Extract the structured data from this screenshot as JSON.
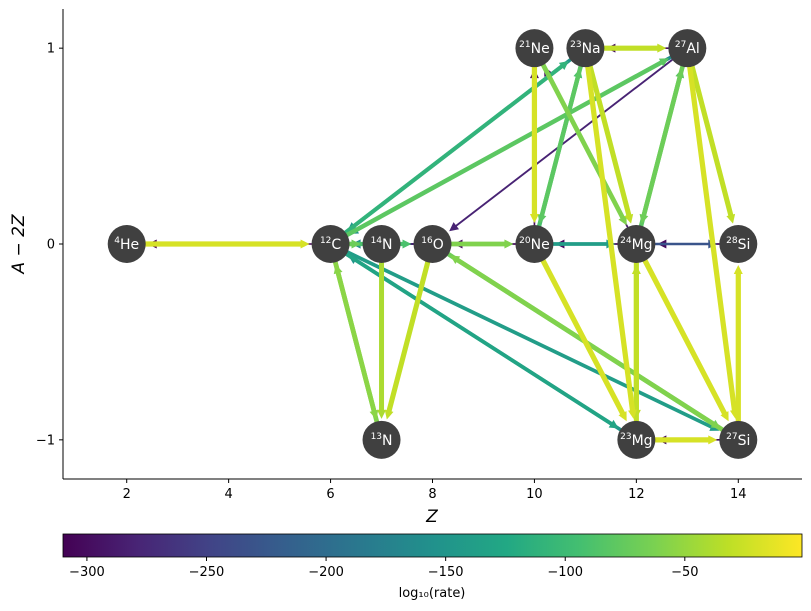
{
  "chart_data": {
    "type": "network",
    "xlabel": "Z",
    "ylabel": "A − 2Z",
    "xlim": [
      0.75,
      15.25
    ],
    "ylim": [
      -1.2,
      1.2
    ],
    "xticks": [
      2,
      4,
      6,
      8,
      10,
      12,
      14
    ],
    "yticks": [
      1,
      0,
      -1
    ],
    "ytick_labels": [
      "1",
      "0",
      "−1"
    ],
    "grid": false,
    "nodes": [
      {
        "id": "he4",
        "mass": "4",
        "symbol": "He",
        "z": 2,
        "a_minus_2z": 0
      },
      {
        "id": "c12",
        "mass": "12",
        "symbol": "C",
        "z": 6,
        "a_minus_2z": 0
      },
      {
        "id": "n13",
        "mass": "13",
        "symbol": "N",
        "z": 7,
        "a_minus_2z": -1
      },
      {
        "id": "n14",
        "mass": "14",
        "symbol": "N",
        "z": 7,
        "a_minus_2z": 0
      },
      {
        "id": "o16",
        "mass": "16",
        "symbol": "O",
        "z": 8,
        "a_minus_2z": 0
      },
      {
        "id": "ne20",
        "mass": "20",
        "symbol": "Ne",
        "z": 10,
        "a_minus_2z": 0
      },
      {
        "id": "ne21",
        "mass": "21",
        "symbol": "Ne",
        "z": 10,
        "a_minus_2z": 1
      },
      {
        "id": "na23",
        "mass": "23",
        "symbol": "Na",
        "z": 11,
        "a_minus_2z": 1
      },
      {
        "id": "mg23",
        "mass": "23",
        "symbol": "Mg",
        "z": 12,
        "a_minus_2z": -1
      },
      {
        "id": "mg24",
        "mass": "24",
        "symbol": "Mg",
        "z": 12,
        "a_minus_2z": 0
      },
      {
        "id": "al27",
        "mass": "27",
        "symbol": "Al",
        "z": 13,
        "a_minus_2z": 1
      },
      {
        "id": "si27",
        "mass": "27",
        "symbol": "Si",
        "z": 14,
        "a_minus_2z": -1
      },
      {
        "id": "si28",
        "mass": "28",
        "symbol": "Si",
        "z": 14,
        "a_minus_2z": 0
      }
    ],
    "edges": [
      {
        "from": "he4",
        "to": "c12",
        "log10_rate": -20
      },
      {
        "from": "c12",
        "to": "he4",
        "log10_rate": -310
      },
      {
        "from": "c12",
        "to": "n13",
        "log10_rate": -55
      },
      {
        "from": "n13",
        "to": "c12",
        "log10_rate": -60
      },
      {
        "from": "n14",
        "to": "n13",
        "log10_rate": -40
      },
      {
        "from": "o16",
        "to": "n13",
        "log10_rate": -30
      },
      {
        "from": "n14",
        "to": "c12",
        "log10_rate": -150
      },
      {
        "from": "c12",
        "to": "n14",
        "log10_rate": -70
      },
      {
        "from": "c12",
        "to": "o16",
        "log10_rate": -90
      },
      {
        "from": "o16",
        "to": "c12",
        "log10_rate": -280
      },
      {
        "from": "o16",
        "to": "ne20",
        "log10_rate": -60
      },
      {
        "from": "ne20",
        "to": "o16",
        "log10_rate": -300
      },
      {
        "from": "ne20",
        "to": "mg24",
        "log10_rate": -140
      },
      {
        "from": "mg24",
        "to": "ne20",
        "log10_rate": -300
      },
      {
        "from": "mg24",
        "to": "si28",
        "log10_rate": -230
      },
      {
        "from": "si28",
        "to": "mg24",
        "log10_rate": -300
      },
      {
        "from": "ne21",
        "to": "ne20",
        "log10_rate": -20
      },
      {
        "from": "ne20",
        "to": "ne21",
        "log10_rate": -300
      },
      {
        "from": "na23",
        "to": "ne20",
        "log10_rate": -80
      },
      {
        "from": "ne20",
        "to": "na23",
        "log10_rate": -90
      },
      {
        "from": "na23",
        "to": "al27",
        "log10_rate": -30
      },
      {
        "from": "al27",
        "to": "na23",
        "log10_rate": -300
      },
      {
        "from": "mg24",
        "to": "al27",
        "log10_rate": -80
      },
      {
        "from": "al27",
        "to": "mg24",
        "log10_rate": -70
      },
      {
        "from": "ne21",
        "to": "mg24",
        "log10_rate": -60
      },
      {
        "from": "mg24",
        "to": "ne21",
        "log10_rate": -290
      },
      {
        "from": "na23",
        "to": "mg24",
        "log10_rate": -30
      },
      {
        "from": "al27",
        "to": "si28",
        "log10_rate": -30
      },
      {
        "from": "c12",
        "to": "na23",
        "log10_rate": -110
      },
      {
        "from": "na23",
        "to": "c12",
        "log10_rate": -150
      },
      {
        "from": "al27",
        "to": "c12",
        "log10_rate": -160
      },
      {
        "from": "al27",
        "to": "o16",
        "log10_rate": -280
      },
      {
        "from": "c12",
        "to": "al27",
        "log10_rate": -80
      },
      {
        "from": "c12",
        "to": "mg23",
        "log10_rate": -130
      },
      {
        "from": "mg23",
        "to": "c12",
        "log10_rate": -150
      },
      {
        "from": "c12",
        "to": "si27",
        "log10_rate": -140
      },
      {
        "from": "o16",
        "to": "si27",
        "log10_rate": -70
      },
      {
        "from": "si27",
        "to": "o16",
        "log10_rate": -60
      },
      {
        "from": "ne20",
        "to": "mg23",
        "log10_rate": -20
      },
      {
        "from": "mg24",
        "to": "mg23",
        "log10_rate": -30
      },
      {
        "from": "mg23",
        "to": "mg24",
        "log10_rate": -30
      },
      {
        "from": "mg24",
        "to": "si27",
        "log10_rate": -20
      },
      {
        "from": "si27",
        "to": "mg23",
        "log10_rate": -300
      },
      {
        "from": "mg23",
        "to": "si27",
        "log10_rate": -20
      },
      {
        "from": "si27",
        "to": "si28",
        "log10_rate": -20
      },
      {
        "from": "na23",
        "to": "mg23",
        "log10_rate": -20
      },
      {
        "from": "al27",
        "to": "si27",
        "log10_rate": -20
      }
    ],
    "colorbar": {
      "label": "log₁₀(rate)",
      "colormap": "viridis",
      "range": [
        -310,
        -1
      ],
      "ticks": [
        -300,
        -250,
        -200,
        -150,
        -100,
        -50
      ],
      "tick_labels": [
        "−300",
        "−250",
        "−200",
        "−150",
        "−100",
        "−50"
      ]
    },
    "node_color": "#404040",
    "node_text_color": "#ffffff"
  }
}
